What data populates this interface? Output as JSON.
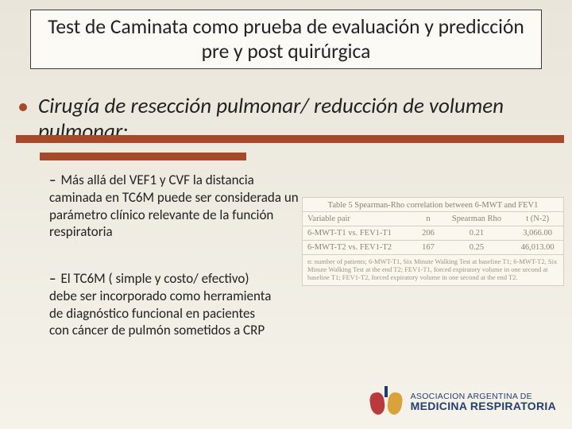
{
  "colors": {
    "accent_bar": "#a54a2a",
    "bullet_dot": "#a54a2a",
    "title_border": "#3a3a3a",
    "title_bg": "#fcfaf5",
    "slide_bg_top": "#e9e5da",
    "slide_bg_bottom": "#f5f2ea",
    "table_border": "#d6cfc1",
    "table_text": "#888070",
    "logo_primary": "#233f6f",
    "logo_lung_left": "#b93a3a",
    "logo_lung_right": "#d9a23a"
  },
  "title": "Test de Caminata como prueba de evaluación y predicción pre y post quirúrgica",
  "main_bullet": "Cirugía de resección pulmonar/ reducción de volumen pulmonar:",
  "sub_bullets": {
    "a": "Más allá del VEF1 y CVF la distancia caminada en TC6M puede ser considerada un parámetro clínico relevante de la función respiratoria",
    "b": "El TC6M ( simple y costo/ efectivo) debe ser incorporado como herramienta de diagnóstico funcional en pacientes con  cáncer de pulmón sometidos a CRP"
  },
  "table": {
    "caption": "Table 5 Spearman-Rho correlation between 6-MWT and FEV1",
    "headers": [
      "Variable pair",
      "n",
      "Spearman Rho",
      "t (N-2)"
    ],
    "rows": [
      [
        "6-MWT-T1 vs. FEV1-T1",
        "206",
        "0.21",
        "3,066.00"
      ],
      [
        "6-MWT-T2 vs. FEV1-T2",
        "167",
        "0.25",
        "46,013.00"
      ]
    ],
    "footnote": "n: number of patients; 6-MWT-T1, Six Minute Walking Test at baseline T1; 6-MWT-T2, Six Minute Walking Test at the end T2; FEV1-T1, forced expiratory volume in one second at baseline T1; FEV1-T2, forced expiratory volume in one second at the end T2."
  },
  "logo": {
    "line1": "ASOCIACION ARGENTINA DE",
    "line2": "MEDICINA RESPIRATORIA"
  }
}
